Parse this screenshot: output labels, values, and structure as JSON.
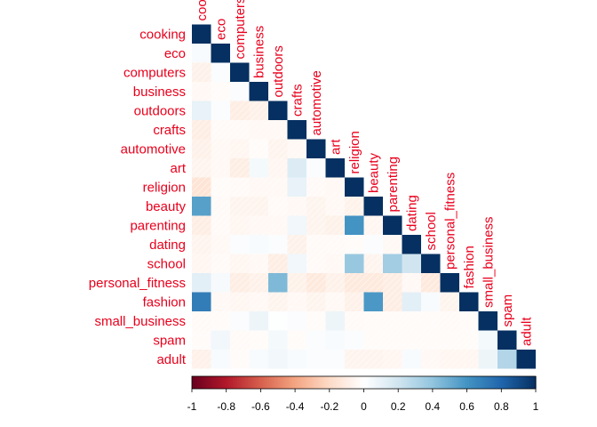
{
  "chart_data": {
    "type": "heatmap",
    "layout": "lower-triangle correlation matrix",
    "variables": [
      "cooking",
      "eco",
      "computers",
      "business",
      "outdoors",
      "crafts",
      "automotive",
      "art",
      "religion",
      "beauty",
      "parenting",
      "dating",
      "school",
      "personal_fitness",
      "fashion",
      "small_business",
      "spam",
      "adult"
    ],
    "matrix": [
      [
        1
      ],
      [
        0.03,
        1
      ],
      [
        -0.08,
        0.02,
        1
      ],
      [
        -0.04,
        -0.02,
        0.02,
        1
      ],
      [
        0.1,
        0.02,
        -0.1,
        -0.08,
        1
      ],
      [
        -0.1,
        -0.03,
        -0.03,
        -0.04,
        -0.04,
        1
      ],
      [
        -0.08,
        -0.04,
        -0.05,
        -0.02,
        -0.06,
        -0.04,
        1
      ],
      [
        -0.06,
        -0.04,
        -0.1,
        0.05,
        -0.05,
        0.15,
        0.02,
        1
      ],
      [
        -0.15,
        -0.02,
        -0.03,
        -0.04,
        -0.04,
        0.1,
        -0.03,
        -0.04,
        1
      ],
      [
        0.55,
        -0.03,
        -0.06,
        -0.06,
        -0.03,
        -0.04,
        -0.06,
        -0.04,
        -0.07,
        1
      ],
      [
        -0.1,
        -0.03,
        -0.05,
        -0.04,
        -0.04,
        0.06,
        -0.06,
        -0.08,
        0.6,
        -0.05,
        1
      ],
      [
        -0.06,
        -0.04,
        0.02,
        0.03,
        0.02,
        -0.08,
        -0.03,
        -0.03,
        -0.02,
        0.02,
        -0.04,
        1
      ],
      [
        -0.05,
        -0.03,
        -0.05,
        -0.04,
        -0.1,
        0.06,
        -0.03,
        -0.04,
        0.38,
        -0.06,
        0.35,
        0.2,
        1
      ],
      [
        0.12,
        0.04,
        -0.1,
        -0.08,
        0.45,
        -0.08,
        -0.12,
        -0.08,
        -0.12,
        -0.12,
        -0.1,
        -0.04,
        -0.12,
        1
      ],
      [
        0.7,
        -0.04,
        -0.05,
        -0.04,
        -0.06,
        -0.04,
        -0.06,
        -0.04,
        -0.08,
        0.58,
        -0.1,
        0.12,
        0.03,
        -0.06,
        1
      ],
      [
        -0.03,
        -0.02,
        0.02,
        0.08,
        0.01,
        0.02,
        -0.02,
        0.08,
        -0.03,
        -0.02,
        -0.02,
        -0.02,
        -0.02,
        -0.03,
        -0.02,
        1
      ],
      [
        -0.02,
        0.06,
        -0.03,
        -0.02,
        0.05,
        -0.02,
        0.02,
        0.03,
        0.02,
        -0.02,
        -0.02,
        -0.02,
        -0.02,
        -0.02,
        -0.02,
        0.05,
        1
      ],
      [
        -0.08,
        0.03,
        -0.02,
        0.03,
        0.06,
        0.03,
        0.02,
        0.02,
        -0.06,
        -0.06,
        -0.05,
        0.03,
        -0.04,
        -0.05,
        -0.05,
        0.08,
        0.3,
        1
      ]
    ],
    "colorbar": {
      "range": [
        -1,
        1
      ],
      "ticks": [
        "-1",
        "-0.8",
        "-0.6",
        "-0.4",
        "-0.2",
        "0",
        "0.2",
        "0.4",
        "0.6",
        "0.8",
        "1"
      ],
      "orientation": "horizontal",
      "placement": "bottom"
    },
    "colors": {
      "negative": "#67001f",
      "neutral": "#ffffff",
      "positive": "#053061",
      "label": "#e8001c"
    }
  }
}
